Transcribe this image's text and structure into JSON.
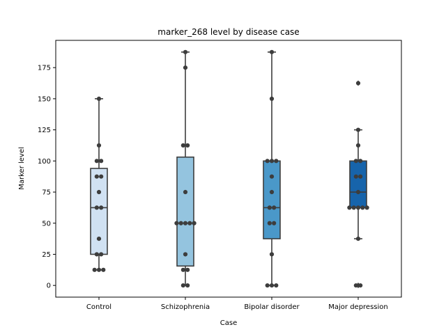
{
  "chart_data": {
    "type": "box",
    "title": "marker_268 level by disease case",
    "xlabel": "Case",
    "ylabel": "Marker level",
    "ylim": [
      -9.4,
      196.9
    ],
    "yticks": [
      0,
      25,
      50,
      75,
      100,
      125,
      150,
      175
    ],
    "grid": false,
    "legend": false,
    "categories": [
      "Control",
      "Schizophrenia",
      "Bipolar disorder",
      "Major depression"
    ],
    "series": [
      {
        "category": "Control",
        "color": "#d0e1f2",
        "q1": 25.0,
        "median": 62.5,
        "q3": 94.0,
        "whisker_low": 12.5,
        "whisker_high": 150.0,
        "outliers": [],
        "points": [
          12.5,
          12.5,
          12.5,
          25.0,
          25.0,
          37.5,
          62.5,
          62.5,
          75.0,
          87.5,
          87.5,
          100.0,
          100.0,
          112.5,
          150.0
        ]
      },
      {
        "category": "Schizophrenia",
        "color": "#94c4df",
        "q1": 15.6,
        "median": 50.0,
        "q3": 103.1,
        "whisker_low": 0.0,
        "whisker_high": 187.5,
        "outliers": [],
        "points": [
          0.0,
          0.0,
          12.5,
          12.5,
          25.0,
          50.0,
          50.0,
          50.0,
          50.0,
          50.0,
          75.0,
          112.5,
          112.5,
          175.0,
          187.5
        ]
      },
      {
        "category": "Bipolar disorder",
        "color": "#4a98c9",
        "q1": 37.5,
        "median": 62.5,
        "q3": 100.0,
        "whisker_low": 0.0,
        "whisker_high": 187.5,
        "outliers": [],
        "points": [
          0.0,
          0.0,
          0.0,
          25.0,
          50.0,
          50.0,
          62.5,
          62.5,
          75.0,
          87.5,
          100.0,
          100.0,
          100.0,
          150.0,
          187.5
        ]
      },
      {
        "category": "Major depression",
        "color": "#1764ab",
        "q1": 62.5,
        "median": 75.0,
        "q3": 100.0,
        "whisker_low": 37.5,
        "whisker_high": 125.0,
        "outliers": [
          162.5,
          0.0,
          0.0
        ],
        "points": [
          0.0,
          0.0,
          37.5,
          62.5,
          62.5,
          62.5,
          62.5,
          62.5,
          75.0,
          87.5,
          87.5,
          100.0,
          100.0,
          112.5,
          125.0,
          162.5
        ]
      }
    ]
  }
}
